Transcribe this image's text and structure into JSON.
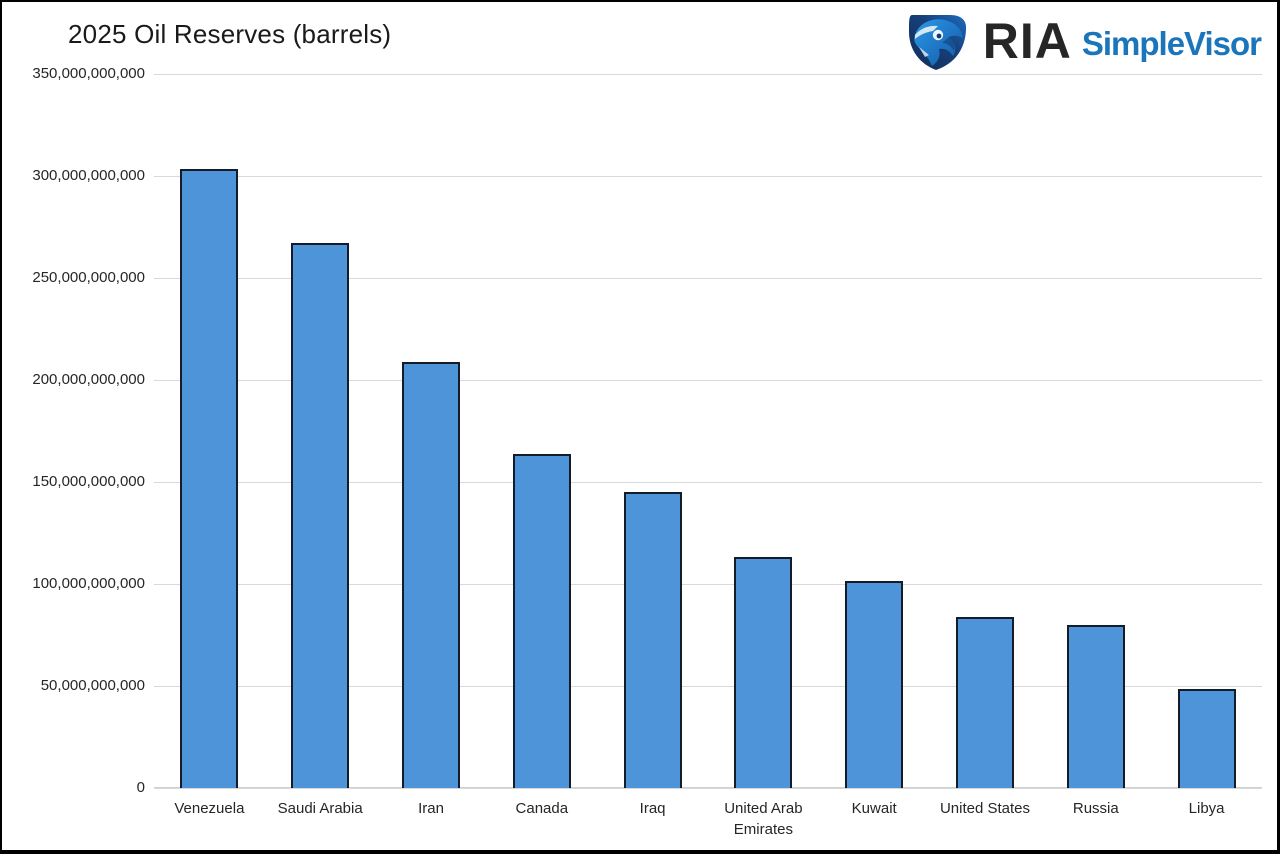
{
  "header": {
    "title": "2025 Oil Reserves (barrels)",
    "logo": {
      "eagle_icon": "eagle-shield-icon",
      "ria_text": "RIA",
      "simplevisor_text": "SimpleVisor"
    }
  },
  "colors": {
    "bar_fill": "#4e94d8",
    "bar_border": "#131c28",
    "gridline": "#d9d9d9",
    "axis_text": "#262626",
    "title_text": "#1a1a1a",
    "ria_dark": "#262626",
    "simplevisor_blue": "#1b75bb",
    "logo_navy": "#16355f",
    "logo_bright_blue": "#2d9ae3"
  },
  "chart_data": {
    "type": "bar",
    "title": "2025 Oil Reserves (barrels)",
    "categories": [
      "Venezuela",
      "Saudi Arabia",
      "Iran",
      "Canada",
      "Iraq",
      "United Arab Emirates",
      "Kuwait",
      "United States",
      "Russia",
      "Libya"
    ],
    "values": [
      303200000000,
      267200000000,
      208600000000,
      163600000000,
      145000000000,
      113000000000,
      101500000000,
      84000000000,
      80000000000,
      48400000000
    ],
    "xlabel": "",
    "ylabel": "",
    "ylim": [
      0,
      350000000000
    ],
    "ytick_step": 50000000000,
    "ytick_labels": [
      "0",
      "50,000,000,000",
      "100,000,000,000",
      "150,000,000,000",
      "200,000,000,000",
      "250,000,000,000",
      "300,000,000,000",
      "350,000,000,000"
    ],
    "grid": true,
    "legend": false,
    "bar_outline": true
  }
}
